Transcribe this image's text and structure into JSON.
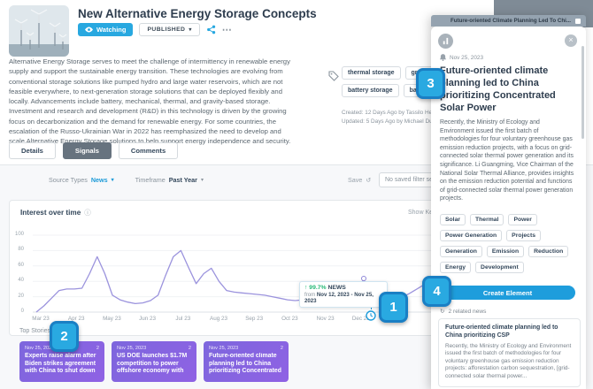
{
  "header": {
    "title": "New Alternative Energy Storage Concepts",
    "watching_label": "Watching",
    "status_label": "PUBLISHED",
    "description": "Alternative Energy Storage serves to meet the challenge of intermittency in renewable energy supply and support the sustainable energy transition. These technologies are evolving from conventional storage solutions like pumped hydro and large water reservoirs, which are not feasible everywhere, to next-generation storage solutions that can be deployed flexibly and locally. Advancements include battery, mechanical, thermal, and gravity-based storage. Investment and research and development (R&D) in this technology is driven by the growing focus on decarbonization and the demand for renewable energy. For some countries, the escalation of the Russo-Ukrainian War in 2022 has reemphasized the need to develop and scale Alternative Energy Storage solutions to help support energy independence and security."
  },
  "tags": {
    "items": [
      "thermal storage",
      "gravity-based",
      "battery storage",
      "battery"
    ],
    "created": "Created: 12 Days Ago by Tassilo Henike",
    "updated": "Updated: 5 Days Ago by Michael Durst"
  },
  "tabs": {
    "details": "Details",
    "signals": "Signals",
    "comments": "Comments"
  },
  "filters": {
    "source_types_label": "Source Types",
    "source_types_value": "News",
    "timeframe_label": "Timeframe",
    "timeframe_value": "Past Year",
    "save_label": "Save",
    "saved_filter_placeholder": "No saved filter selected"
  },
  "chart_card": {
    "title": "Interest over time",
    "show_key_events_label": "Show Key Events",
    "tooltip": {
      "pct": "↑ 99.7%",
      "source": "NEWS",
      "from_label": "from",
      "range": "Nov 12, 2023 - Nov 25, 2023"
    }
  },
  "chart_data": {
    "type": "line",
    "title": "Interest over time",
    "categories": [
      "Mar 23",
      "Apr 23",
      "May 23",
      "Jun 23",
      "Jul 23",
      "Aug 23",
      "Sep 23",
      "Oct 23",
      "Nov 23",
      "Dec 23",
      "Jan 24"
    ],
    "values": [
      0,
      8,
      18,
      28,
      30,
      30,
      31,
      50,
      72,
      50,
      22,
      16,
      13,
      11,
      12,
      15,
      22,
      48,
      72,
      80,
      58,
      37,
      50,
      57,
      40,
      28,
      26,
      25,
      24,
      23,
      22,
      20,
      18,
      16,
      15,
      16,
      15,
      14,
      13,
      15,
      17,
      15,
      14,
      44,
      13,
      12,
      13,
      15,
      19,
      24,
      30,
      36
    ],
    "yticks": [
      0,
      20,
      40,
      60,
      80,
      100
    ],
    "ylim": [
      0,
      100
    ],
    "line_color": "#9b93dd",
    "marker_index": 44,
    "spike_index": 43,
    "grid": true,
    "legend": "none"
  },
  "top_stories": {
    "label": "Top Stories",
    "cards": [
      {
        "date": "Nov 25, 2023",
        "count": "2",
        "title": "Experts raise alarm after Biden strikes agreement with China to shut down fossil fuels - Fox..."
      },
      {
        "date": "Nov 25, 2023",
        "count": "2",
        "title": "US DOE launches $1.7M competition to power offshore economy with marine energy"
      },
      {
        "date": "Nov 25, 2023",
        "count": "2",
        "title": "Future-oriented climate planning led to China prioritizing Concentrated Sola..."
      }
    ]
  },
  "panel": {
    "header_title": "Future-oriented Climate Planning Led To Chi...",
    "date": "Nov 25, 2023",
    "title": "Future-oriented climate planning led to China prioritizing Concentrated Solar Power",
    "body": "Recently, the Ministry of Ecology and Environment issued the first batch of methodologies for four voluntary greenhouse gas emission reduction projects, with a focus on grid-connected solar thermal power generation and its significance. Li Guangming, Vice Chairman of the National Solar Thermal Alliance, provides insights on the emission reduction potential and functions of grid-connected solar thermal power generation projects.",
    "keywords": [
      "Solar",
      "Thermal",
      "Power",
      "Power Generation",
      "Projects",
      "Generation",
      "Emission",
      "Reduction",
      "Energy",
      "Development"
    ],
    "create_button_label": "Create Element",
    "related_count_label": "2 related news",
    "related": {
      "title": "Future-oriented climate planning led to China prioritizing CSP",
      "body": "Recently, the Ministry of Ecology and Environment issued the first batch of methodologies for four voluntary greenhouse gas emission reduction projects: afforestation carbon sequestration, [grid-connected solar thermal power..."
    }
  },
  "callouts": [
    "1",
    "2",
    "3",
    "4"
  ],
  "icons": {
    "info": "ⓘ",
    "undo": "↺",
    "caret": "▾",
    "more": "⋯",
    "close": "×",
    "related": "↻"
  },
  "colors": {
    "accent_blue": "#28a8e0",
    "badge_blue": "#29a9e1",
    "story_purple": "#7d66dd",
    "line_purple": "#9b93dd",
    "green_up": "#27b977"
  }
}
